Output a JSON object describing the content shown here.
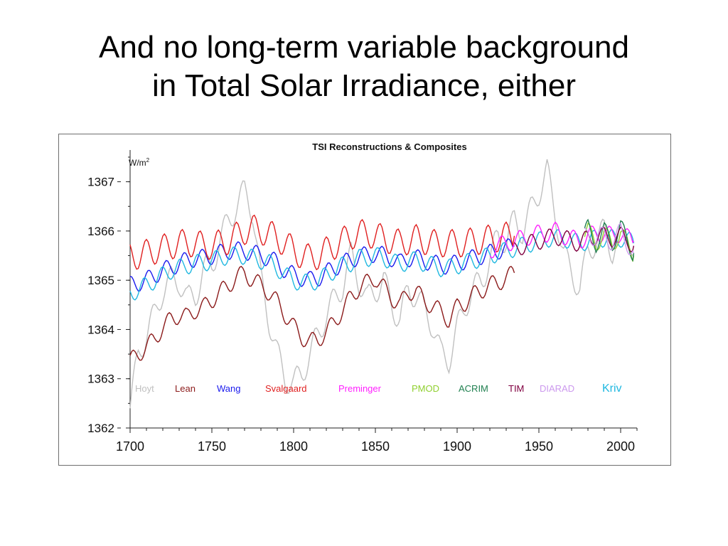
{
  "slide": {
    "title_line1": "And no long-term variable background",
    "title_line2": "in Total Solar Irradiance, either"
  },
  "chart_data": {
    "type": "line",
    "title": "TSI Reconstructions & Composites",
    "ylabel_unit": "W/m",
    "ylabel_unit_superscript": "2",
    "xlim": [
      1700,
      2010
    ],
    "ylim": [
      1362,
      1367.5
    ],
    "xticks": [
      1700,
      1750,
      1800,
      1850,
      1900,
      1950,
      2000
    ],
    "yticks": [
      1362,
      1363,
      1364,
      1365,
      1366,
      1367
    ],
    "grid": false,
    "legend_position": "bottom-inside",
    "series": [
      {
        "name": "Hoyt",
        "color": "#c0c0c0",
        "x": [
          1700,
          1705,
          1710,
          1715,
          1720,
          1725,
          1730,
          1735,
          1740,
          1745,
          1750,
          1755,
          1760,
          1765,
          1770,
          1772,
          1775,
          1780,
          1785,
          1790,
          1795,
          1800,
          1805,
          1810,
          1815,
          1820,
          1825,
          1830,
          1835,
          1840,
          1845,
          1850,
          1855,
          1860,
          1865,
          1870,
          1875,
          1880,
          1885,
          1890,
          1895,
          1900,
          1905,
          1910,
          1915,
          1920,
          1925,
          1930,
          1935,
          1940,
          1945,
          1950,
          1955,
          1960,
          1965,
          1970,
          1975,
          1980,
          1985,
          1990,
          1995,
          2000,
          2005,
          2008
        ],
        "y": [
          1362.4,
          1363.5,
          1363.9,
          1364.3,
          1364.8,
          1365.0,
          1365.0,
          1364.6,
          1364.7,
          1365.2,
          1365.3,
          1365.8,
          1366.2,
          1366.5,
          1366.8,
          1366.7,
          1366.4,
          1365.0,
          1364.2,
          1363.5,
          1363.0,
          1362.9,
          1363.1,
          1363.5,
          1363.9,
          1364.3,
          1364.6,
          1364.9,
          1365.5,
          1365.0,
          1364.6,
          1364.8,
          1365.0,
          1364.5,
          1364.2,
          1364.8,
          1364.7,
          1364.4,
          1364.1,
          1363.5,
          1363.4,
          1364.0,
          1364.5,
          1364.8,
          1365.0,
          1365.4,
          1365.9,
          1365.8,
          1366.2,
          1366.0,
          1366.4,
          1366.8,
          1367.2,
          1366.4,
          1365.5,
          1365.2,
          1364.8,
          1365.6,
          1365.8,
          1366.0,
          1365.6,
          1365.8,
          1366.0,
          1365.5
        ]
      },
      {
        "name": "Lean",
        "color": "#8b1a1a",
        "x": [
          1700,
          1705,
          1710,
          1715,
          1720,
          1725,
          1730,
          1735,
          1740,
          1745,
          1750,
          1755,
          1760,
          1765,
          1770,
          1775,
          1780,
          1785,
          1790,
          1795,
          1800,
          1805,
          1810,
          1815,
          1820,
          1825,
          1830,
          1835,
          1840,
          1845,
          1850,
          1855,
          1860,
          1865,
          1870,
          1875,
          1880,
          1885,
          1890,
          1895,
          1900,
          1905,
          1910,
          1915,
          1920,
          1925,
          1930,
          1935
        ],
        "y": [
          1363.35,
          1363.5,
          1363.65,
          1363.8,
          1364.05,
          1364.2,
          1364.3,
          1364.25,
          1364.4,
          1364.45,
          1364.6,
          1364.75,
          1364.9,
          1365.05,
          1365.15,
          1365.0,
          1364.9,
          1364.75,
          1364.55,
          1364.3,
          1364.05,
          1363.85,
          1363.75,
          1363.8,
          1363.95,
          1364.15,
          1364.4,
          1364.65,
          1364.85,
          1364.95,
          1365.05,
          1364.85,
          1364.65,
          1364.5,
          1364.75,
          1364.8,
          1364.55,
          1364.5,
          1364.35,
          1364.2,
          1364.45,
          1364.55,
          1364.7,
          1364.8,
          1364.9,
          1364.95,
          1365.05,
          1365.15
        ]
      },
      {
        "name": "Wang",
        "color": "#1a1aee",
        "x": [
          1700,
          1705,
          1710,
          1715,
          1720,
          1725,
          1730,
          1735,
          1740,
          1745,
          1750,
          1755,
          1760,
          1765,
          1770,
          1775,
          1780,
          1785,
          1790,
          1795,
          1800,
          1805,
          1810,
          1815,
          1820,
          1825,
          1830,
          1835,
          1840,
          1845,
          1850,
          1855,
          1860,
          1865,
          1870,
          1875,
          1880,
          1885,
          1890,
          1895,
          1900,
          1905,
          1910,
          1915,
          1920,
          1925,
          1930,
          1935
        ],
        "y": [
          1364.9,
          1364.95,
          1365.0,
          1365.1,
          1365.2,
          1365.25,
          1365.35,
          1365.4,
          1365.45,
          1365.45,
          1365.5,
          1365.55,
          1365.6,
          1365.6,
          1365.6,
          1365.55,
          1365.5,
          1365.45,
          1365.35,
          1365.2,
          1365.1,
          1365.05,
          1365.0,
          1365.05,
          1365.15,
          1365.25,
          1365.35,
          1365.4,
          1365.5,
          1365.5,
          1365.55,
          1365.5,
          1365.45,
          1365.35,
          1365.45,
          1365.45,
          1365.4,
          1365.35,
          1365.3,
          1365.3,
          1365.35,
          1365.4,
          1365.45,
          1365.5,
          1365.55,
          1365.6,
          1365.65,
          1365.7
        ]
      },
      {
        "name": "Svalgaard",
        "color": "#e02020",
        "x": [
          1700,
          1705,
          1710,
          1715,
          1720,
          1725,
          1730,
          1735,
          1740,
          1745,
          1750,
          1755,
          1760,
          1765,
          1770,
          1775,
          1780,
          1785,
          1790,
          1795,
          1800,
          1805,
          1810,
          1815,
          1820,
          1825,
          1830,
          1835,
          1840,
          1845,
          1850,
          1855,
          1860,
          1865,
          1870,
          1875,
          1880,
          1885,
          1890,
          1895,
          1900,
          1905,
          1910,
          1915,
          1920,
          1925,
          1930,
          1935
        ],
        "y": [
          1365.5,
          1365.5,
          1365.55,
          1365.6,
          1365.65,
          1365.7,
          1365.75,
          1365.75,
          1365.75,
          1365.7,
          1365.7,
          1365.75,
          1365.8,
          1365.9,
          1366.0,
          1366.05,
          1366.0,
          1365.95,
          1365.85,
          1365.75,
          1365.6,
          1365.5,
          1365.45,
          1365.5,
          1365.6,
          1365.7,
          1365.8,
          1365.9,
          1365.95,
          1365.95,
          1365.9,
          1365.85,
          1365.8,
          1365.75,
          1365.8,
          1365.85,
          1365.8,
          1365.75,
          1365.75,
          1365.75,
          1365.75,
          1365.75,
          1365.8,
          1365.8,
          1365.85,
          1365.85,
          1365.9,
          1365.9
        ]
      },
      {
        "name": "Kriv",
        "color": "#20b8e0",
        "x": [
          1700,
          1705,
          1710,
          1715,
          1720,
          1725,
          1730,
          1735,
          1740,
          1745,
          1750,
          1755,
          1760,
          1765,
          1770,
          1775,
          1780,
          1785,
          1790,
          1795,
          1800,
          1805,
          1810,
          1815,
          1820,
          1825,
          1830,
          1835,
          1840,
          1845,
          1850,
          1855,
          1860,
          1865,
          1870,
          1875,
          1880,
          1885,
          1890,
          1895,
          1900,
          1905,
          1910,
          1915,
          1920,
          1925,
          1930,
          1935,
          1940,
          1945,
          1950,
          1955,
          1960,
          1965,
          1970,
          1975,
          1980,
          1985,
          1990,
          1995,
          2000,
          2005,
          2008
        ],
        "y": [
          1364.75,
          1364.8,
          1364.9,
          1365.0,
          1365.1,
          1365.2,
          1365.25,
          1365.3,
          1365.35,
          1365.35,
          1365.4,
          1365.45,
          1365.5,
          1365.5,
          1365.5,
          1365.45,
          1365.4,
          1365.35,
          1365.25,
          1365.1,
          1365.0,
          1364.95,
          1364.95,
          1365.0,
          1365.1,
          1365.2,
          1365.3,
          1365.35,
          1365.45,
          1365.45,
          1365.5,
          1365.45,
          1365.4,
          1365.3,
          1365.4,
          1365.4,
          1365.35,
          1365.3,
          1365.25,
          1365.25,
          1365.3,
          1365.35,
          1365.4,
          1365.45,
          1365.5,
          1365.55,
          1365.6,
          1365.65,
          1365.7,
          1365.75,
          1365.8,
          1365.85,
          1365.85,
          1365.85,
          1365.8,
          1365.75,
          1365.8,
          1365.85,
          1365.85,
          1365.85,
          1365.85,
          1365.8,
          1365.75
        ]
      },
      {
        "name": "Preminger",
        "color": "#ff20ff",
        "x": [
          1920,
          1925,
          1930,
          1935,
          1940,
          1945,
          1950,
          1955,
          1960,
          1965,
          1970,
          1975,
          1980,
          1985,
          1990,
          1995,
          2000,
          2005,
          2008
        ],
        "y": [
          1365.6,
          1365.7,
          1365.75,
          1365.8,
          1365.85,
          1365.9,
          1365.95,
          1365.95,
          1366.0,
          1365.9,
          1365.85,
          1365.8,
          1365.9,
          1365.95,
          1365.95,
          1365.9,
          1365.95,
          1365.85,
          1365.8
        ]
      },
      {
        "name": "PMOD",
        "color": "#90d030",
        "x": [
          1978,
          1980,
          1985,
          1990,
          1995,
          2000,
          2005,
          2008
        ],
        "y": [
          1365.9,
          1366.0,
          1365.75,
          1365.95,
          1365.7,
          1366.0,
          1365.65,
          1365.5
        ]
      },
      {
        "name": "ACRIM",
        "color": "#208050",
        "x": [
          1978,
          1980,
          1985,
          1990,
          1995,
          2000,
          2005,
          2008
        ],
        "y": [
          1365.95,
          1366.05,
          1365.75,
          1366.0,
          1365.75,
          1366.1,
          1365.7,
          1365.55
        ]
      },
      {
        "name": "TIM",
        "color": "#800040",
        "x": [
          1935,
          1940,
          1945,
          1950,
          1955,
          1960,
          1965,
          1970,
          1975,
          1980,
          1985,
          1990,
          1995,
          2000,
          2005,
          2008
        ],
        "y": [
          1365.6,
          1365.7,
          1365.75,
          1365.8,
          1365.85,
          1365.9,
          1365.85,
          1365.8,
          1365.75,
          1365.85,
          1365.9,
          1365.9,
          1365.85,
          1365.9,
          1365.8,
          1365.7
        ]
      },
      {
        "name": "DIARAD",
        "color": "#cc99ee",
        "x": [
          1978,
          1980,
          1985,
          1990,
          1995,
          2000,
          2005,
          2008
        ],
        "y": [
          1365.9,
          1366.0,
          1365.8,
          1365.95,
          1365.75,
          1366.0,
          1365.7,
          1365.55
        ]
      }
    ],
    "legend": [
      "Hoyt",
      "Lean",
      "Wang",
      "Svalgaard",
      "Preminger",
      "PMOD",
      "ACRIM",
      "TIM",
      "DIARAD",
      "Kriv"
    ]
  },
  "colors": {
    "Hoyt": "#c0c0c0",
    "Lean": "#8b1a1a",
    "Wang": "#1a1aee",
    "Svalgaard": "#e02020",
    "Preminger": "#ff20ff",
    "PMOD": "#90d030",
    "ACRIM": "#208050",
    "TIM": "#800040",
    "DIARAD": "#cc99ee",
    "Kriv": "#20b8e0"
  }
}
